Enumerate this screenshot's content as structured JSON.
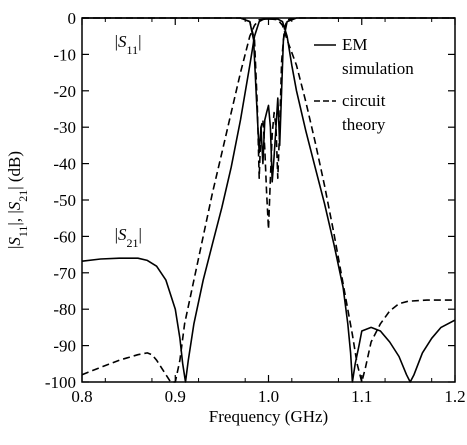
{
  "chart_data": {
    "type": "line",
    "title": "",
    "xlabel": "Frequency (GHz)",
    "ylabel_parts": [
      "|",
      "S",
      "11",
      "|, |",
      "S",
      "21",
      "| (dB)"
    ],
    "xlim": [
      0.8,
      1.2
    ],
    "ylim": [
      -100,
      0
    ],
    "x_ticks": [
      0.8,
      0.9,
      1.0,
      1.1,
      1.2
    ],
    "x_tick_labels": [
      "0.8",
      "0.9",
      "1.0",
      "1.1",
      "1.2"
    ],
    "y_ticks": [
      0,
      -10,
      -20,
      -30,
      -40,
      -50,
      -60,
      -70,
      -80,
      -90,
      -100
    ],
    "y_tick_labels": [
      "0",
      "-10",
      "-20",
      "-30",
      "-40",
      "-50",
      "-60",
      "-70",
      "-80",
      "-90",
      "-100"
    ],
    "grid": false,
    "legend_position": "top-right",
    "legend": [
      {
        "style": "solid",
        "lines": [
          "EM",
          "simulation"
        ]
      },
      {
        "style": "dashed",
        "lines": [
          "circuit",
          "theory"
        ]
      }
    ],
    "annotations": [
      {
        "text": "|S11|",
        "base": "S",
        "sub": "11",
        "x": 0.835,
        "y": -8
      },
      {
        "text": "|S21|",
        "base": "S",
        "sub": "21",
        "x": 0.835,
        "y": -61
      }
    ],
    "series": [
      {
        "name": "EM simulation |S21|",
        "style": "solid",
        "points": [
          [
            0.8,
            -66.8
          ],
          [
            0.82,
            -66.2
          ],
          [
            0.84,
            -66.0
          ],
          [
            0.86,
            -66.0
          ],
          [
            0.87,
            -66.6
          ],
          [
            0.88,
            -68.2
          ],
          [
            0.89,
            -72.0
          ],
          [
            0.9,
            -80.0
          ],
          [
            0.905,
            -88.0
          ],
          [
            0.908,
            -95.0
          ],
          [
            0.911,
            -100.0
          ],
          [
            0.914,
            -94.0
          ],
          [
            0.92,
            -84.0
          ],
          [
            0.93,
            -72.0
          ],
          [
            0.94,
            -62.0
          ],
          [
            0.95,
            -52.0
          ],
          [
            0.96,
            -41.0
          ],
          [
            0.97,
            -28.0
          ],
          [
            0.98,
            -13.0
          ],
          [
            0.985,
            -5.0
          ],
          [
            0.99,
            -1.0
          ],
          [
            0.995,
            -0.3
          ],
          [
            1.0,
            -0.3
          ],
          [
            1.005,
            -0.3
          ],
          [
            1.01,
            -0.3
          ],
          [
            1.015,
            -1.0
          ],
          [
            1.02,
            -5.0
          ],
          [
            1.025,
            -13.0
          ],
          [
            1.03,
            -20.0
          ],
          [
            1.04,
            -31.0
          ],
          [
            1.05,
            -41.0
          ],
          [
            1.06,
            -51.0
          ],
          [
            1.07,
            -62.0
          ],
          [
            1.08,
            -74.0
          ],
          [
            1.085,
            -84.0
          ],
          [
            1.088,
            -92.0
          ],
          [
            1.09,
            -100.0
          ],
          [
            1.093,
            -95.0
          ],
          [
            1.097,
            -90.0
          ],
          [
            1.1,
            -86.0
          ],
          [
            1.11,
            -85.0
          ],
          [
            1.12,
            -86.0
          ],
          [
            1.13,
            -89.0
          ],
          [
            1.14,
            -93.0
          ],
          [
            1.148,
            -98.0
          ],
          [
            1.152,
            -100.0
          ],
          [
            1.156,
            -98.0
          ],
          [
            1.165,
            -92.0
          ],
          [
            1.175,
            -88.0
          ],
          [
            1.185,
            -85.0
          ],
          [
            1.2,
            -83.0
          ]
        ]
      },
      {
        "name": "circuit theory |S21|",
        "style": "dashed",
        "points": [
          [
            0.8,
            -98.0
          ],
          [
            0.82,
            -96.0
          ],
          [
            0.84,
            -94.0
          ],
          [
            0.86,
            -92.5
          ],
          [
            0.87,
            -92.0
          ],
          [
            0.875,
            -92.5
          ],
          [
            0.88,
            -94.0
          ],
          [
            0.89,
            -98.0
          ],
          [
            0.895,
            -100.0
          ],
          [
            0.9,
            -100.0
          ],
          [
            0.905,
            -94.0
          ],
          [
            0.91,
            -84.0
          ],
          [
            0.92,
            -72.0
          ],
          [
            0.93,
            -60.0
          ],
          [
            0.94,
            -48.0
          ],
          [
            0.95,
            -37.0
          ],
          [
            0.96,
            -26.0
          ],
          [
            0.97,
            -15.0
          ],
          [
            0.98,
            -5.0
          ],
          [
            0.985,
            -2.0
          ],
          [
            0.99,
            -0.5
          ],
          [
            1.0,
            -0.2
          ],
          [
            1.01,
            -0.5
          ],
          [
            1.015,
            -2.0
          ],
          [
            1.02,
            -6.0
          ],
          [
            1.03,
            -13.0
          ],
          [
            1.04,
            -23.0
          ],
          [
            1.05,
            -34.0
          ],
          [
            1.06,
            -46.0
          ],
          [
            1.07,
            -59.0
          ],
          [
            1.08,
            -73.0
          ],
          [
            1.09,
            -87.0
          ],
          [
            1.095,
            -95.0
          ],
          [
            1.1,
            -100.0
          ],
          [
            1.104,
            -96.0
          ],
          [
            1.11,
            -89.0
          ],
          [
            1.12,
            -84.0
          ],
          [
            1.13,
            -80.5
          ],
          [
            1.14,
            -78.5
          ],
          [
            1.15,
            -77.8
          ],
          [
            1.17,
            -77.5
          ],
          [
            1.2,
            -77.5
          ]
        ]
      },
      {
        "name": "EM simulation |S11|",
        "style": "solid",
        "points": [
          [
            0.8,
            0
          ],
          [
            0.97,
            0
          ],
          [
            0.98,
            -1.0
          ],
          [
            0.984,
            -6.0
          ],
          [
            0.987,
            -22.0
          ],
          [
            0.99,
            -37.0
          ],
          [
            0.992,
            -30.0
          ],
          [
            0.994,
            -40.0
          ],
          [
            0.996,
            -28.0
          ],
          [
            0.998,
            -26.0
          ],
          [
            1.0,
            -24.0
          ],
          [
            1.002,
            -30.0
          ],
          [
            1.004,
            -45.0
          ],
          [
            1.006,
            -38.0
          ],
          [
            1.008,
            -30.0
          ],
          [
            1.01,
            -22.0
          ],
          [
            1.012,
            -35.0
          ],
          [
            1.014,
            -20.0
          ],
          [
            1.016,
            -6.0
          ],
          [
            1.02,
            -1.0
          ],
          [
            1.03,
            0
          ],
          [
            1.2,
            0
          ]
        ]
      },
      {
        "name": "circuit theory |S11|",
        "style": "dashed",
        "points": [
          [
            0.8,
            0
          ],
          [
            0.97,
            0
          ],
          [
            0.98,
            -1.0
          ],
          [
            0.985,
            -6.0
          ],
          [
            0.988,
            -24.0
          ],
          [
            0.99,
            -44.0
          ],
          [
            0.992,
            -30.0
          ],
          [
            0.994,
            -28.0
          ],
          [
            0.996,
            -36.0
          ],
          [
            0.998,
            -48.0
          ],
          [
            1.0,
            -58.0
          ],
          [
            1.002,
            -44.0
          ],
          [
            1.004,
            -32.0
          ],
          [
            1.006,
            -26.0
          ],
          [
            1.008,
            -30.0
          ],
          [
            1.01,
            -44.0
          ],
          [
            1.012,
            -30.0
          ],
          [
            1.014,
            -12.0
          ],
          [
            1.017,
            -3.0
          ],
          [
            1.02,
            -0.5
          ],
          [
            1.03,
            0
          ],
          [
            1.2,
            0
          ]
        ]
      }
    ]
  }
}
